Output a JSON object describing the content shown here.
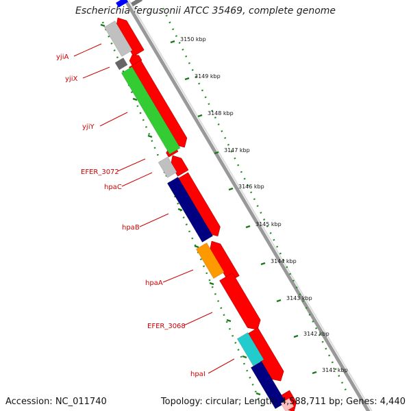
{
  "title": "Escherichia fergusonii ATCC 35469, complete genome",
  "footer": {
    "accession": "Accession: NC_011740",
    "topology": "Topology: circular; Length: 4,588,711 bp; Genes: 4,440"
  },
  "colors": {
    "gray": "#c0c0c0",
    "dark_gray": "#666666",
    "green": "#33cc33",
    "navy": "#000080",
    "orange": "#ff9900",
    "cyan": "#22cccc",
    "red": "#ff0000",
    "blue": "#0000ff",
    "label": "#cc0000",
    "tick": "#228b22"
  },
  "kbp_labels": [
    "3150 kbp",
    "3149 kbp",
    "3148 kbp",
    "3147 kbp",
    "3146 kbp",
    "3145 kbp",
    "3144 kbp",
    "3143 kbp",
    "3142 kbp",
    "3141 kbp"
  ],
  "gene_labels": [
    "yjiA",
    "yjiX",
    "yjiY",
    "EFER_3072",
    "hpaC",
    "hpaB",
    "hpaA",
    "EFER_3068",
    "hpaI"
  ]
}
